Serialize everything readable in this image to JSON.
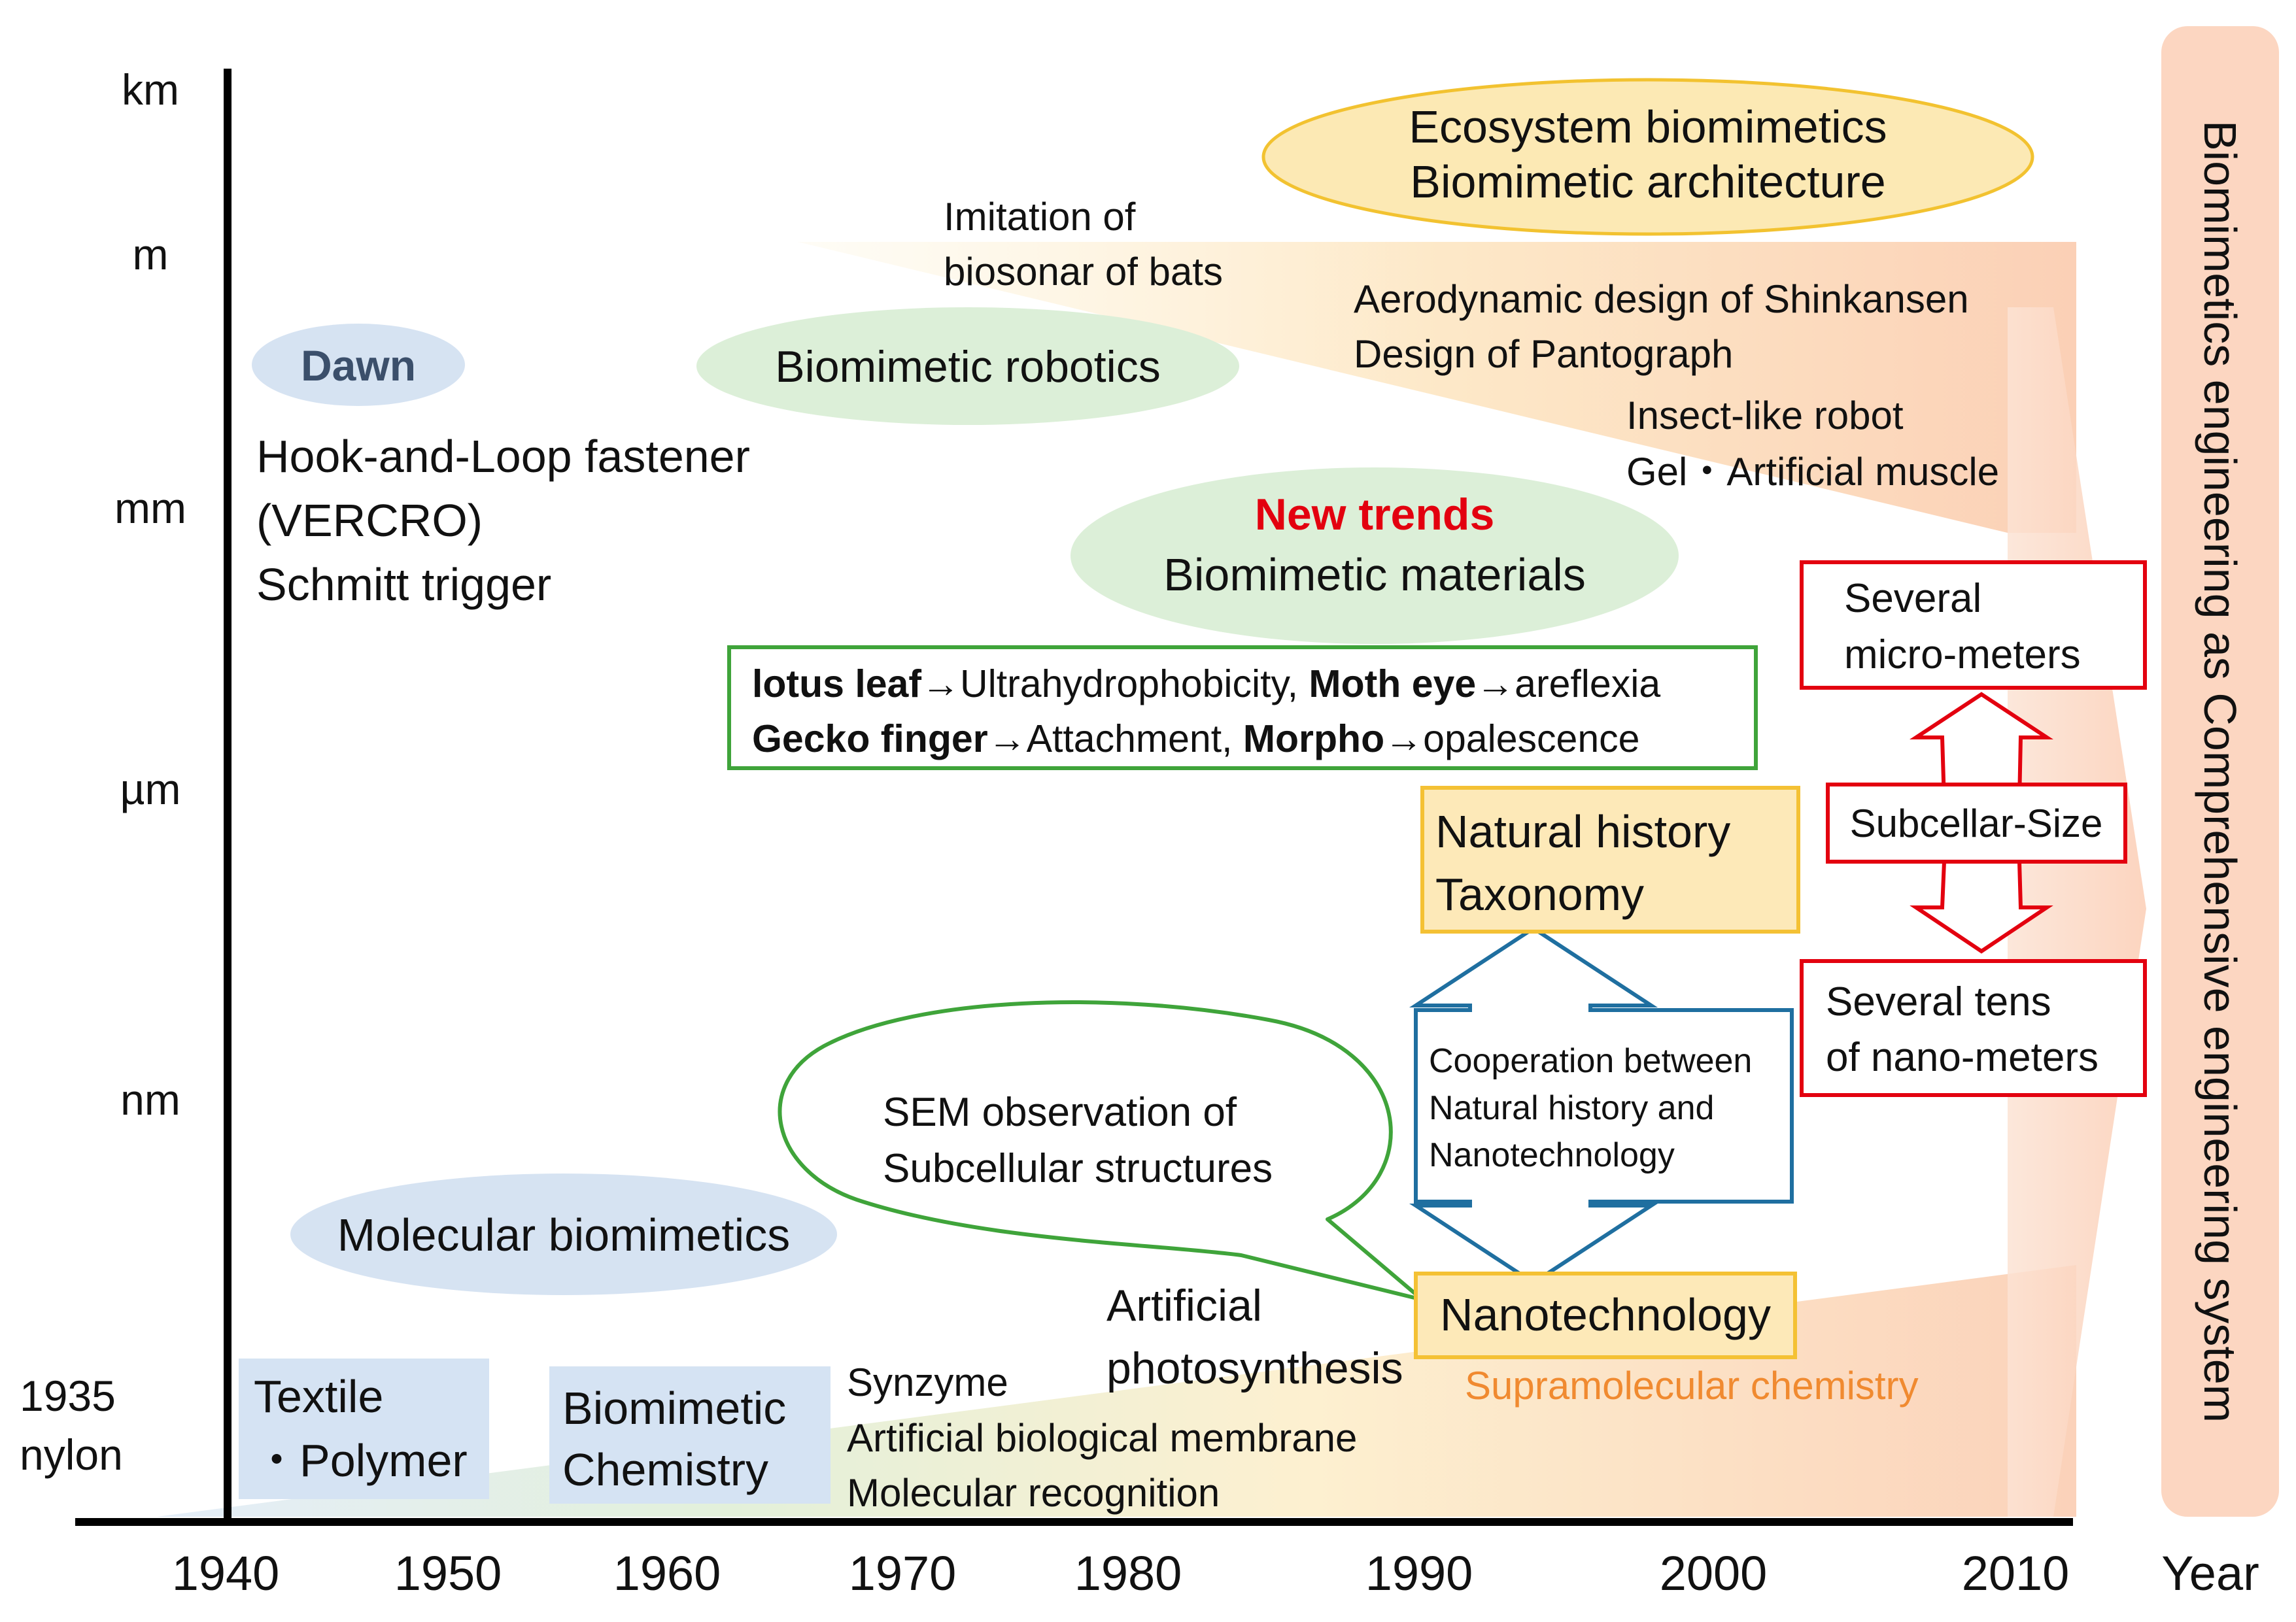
{
  "y_axis": {
    "labels": [
      "km",
      "m",
      "mm",
      "µm",
      "nm"
    ],
    "origin_label": [
      "1935",
      "nylon"
    ]
  },
  "x_axis": {
    "labels": [
      "1940",
      "1950",
      "1960",
      "1970",
      "1980",
      "1990",
      "2000",
      "2010"
    ],
    "unit": "Year"
  },
  "right_banner": "Biomimetics engineering as  Comprehensive engineering system",
  "ovals": {
    "dawn": "Dawn",
    "robotics": "Biomimetic robotics",
    "ecosystem": [
      "Ecosystem biomimetics",
      "Biomimetic architecture"
    ],
    "new_trends_title": "New trends",
    "new_trends_body": "Biomimetic materials",
    "molecular": "Molecular biomimetics"
  },
  "dawn_items": [
    "Hook-and-Loop fastener",
    "(VERCRO)",
    "Schmitt trigger"
  ],
  "bats": [
    "Imitation of",
    "biosonar of bats"
  ],
  "shinkansen": [
    "Aerodynamic design of Shinkansen",
    "Design of Pantograph"
  ],
  "robot_items": [
    "Insect-like robot",
    "Gel・Artificial muscle"
  ],
  "green_box": {
    "row1": [
      {
        "text": "lotus leaf",
        "bold": true
      },
      {
        "text": "→Ultrahydrophobicity, ",
        "bold": false
      },
      {
        "text": "Moth eye",
        "bold": true
      },
      {
        "text": "→areflexia",
        "bold": false
      }
    ],
    "row2": [
      {
        "text": "Gecko finger",
        "bold": true
      },
      {
        "text": "→Attachment, ",
        "bold": false
      },
      {
        "text": "Morpho",
        "bold": true
      },
      {
        "text": "→opalescence",
        "bold": false
      }
    ]
  },
  "speech_bubble": [
    "SEM observation of",
    "Subcellular structures"
  ],
  "natural_history": [
    "Natural history",
    "Taxonomy"
  ],
  "cooperation": [
    "Cooperation between",
    "Natural history and",
    "Nanotechnology"
  ],
  "nanotech": "Nanotechnology",
  "supramolecular": "Supramolecular chemistry",
  "photosynthesis": [
    "Artificial",
    "photosynthesis"
  ],
  "chem_items": [
    "Synzyme",
    "Artificial biological membrane",
    "Molecular recognition"
  ],
  "textile": [
    "Textile",
    "・Polymer"
  ],
  "biomimetic_chem": [
    "Biomimetic",
    "Chemistry"
  ],
  "red_boxes": {
    "micro": [
      "Several",
      "micro-meters"
    ],
    "subcellular": "Subcellar-Size",
    "nano": [
      "Several tens",
      "of nano-meters"
    ]
  },
  "colors": {
    "axis": "#000000",
    "blue_oval": "#d6e3f2",
    "green_oval": "#dcefd8",
    "yellow_oval": "#fce9b4",
    "yellow_oval_border": "#f2c230",
    "red": "#e3000f",
    "green_border": "#3fa43a",
    "teal_border": "#1f6fa0",
    "orange_text": "#f08a30",
    "peach": "#fbd3bd",
    "box_fill_yellow": "#fde9b8",
    "box_border_yellow": "#f4c134",
    "blue_box": "#d5e3f3"
  }
}
